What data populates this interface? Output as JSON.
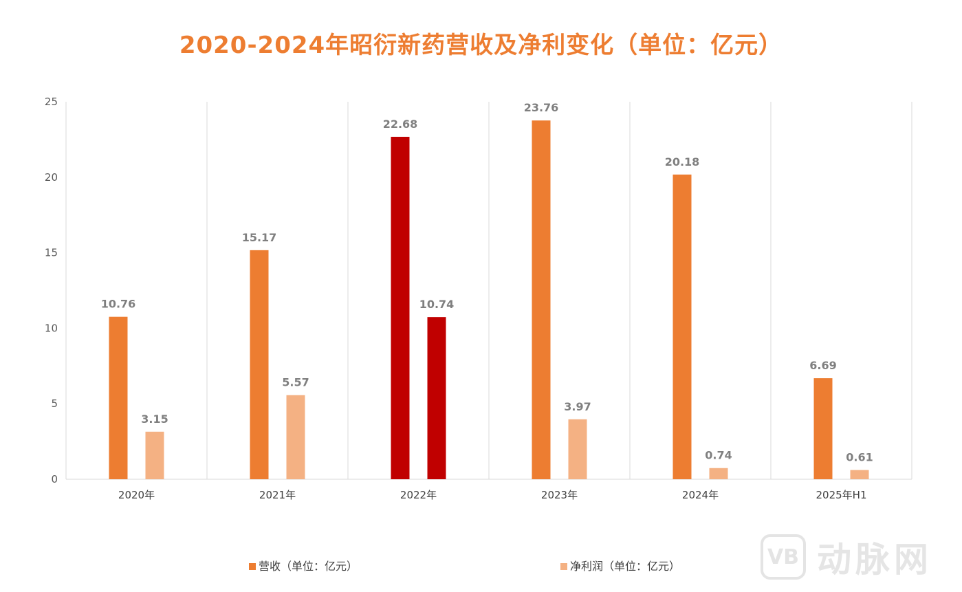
{
  "chart_data": {
    "type": "bar",
    "title": "2020-2024年昭衍新药营收及净利变化（单位：亿元）",
    "categories": [
      "2020年",
      "2021年",
      "2022年",
      "2023年",
      "2024年",
      "2025年H1"
    ],
    "series": [
      {
        "name": "营收（单位：亿元）",
        "values": [
          10.76,
          15.17,
          22.68,
          23.76,
          20.18,
          6.69
        ],
        "color": "#ed7d31"
      },
      {
        "name": "净利润（单位：亿元）",
        "values": [
          3.15,
          5.57,
          10.74,
          3.97,
          0.74,
          0.61
        ],
        "color": "#f4b183"
      }
    ],
    "highlight": {
      "category_index": 2,
      "color": "#c00000"
    },
    "ylim": [
      0,
      25
    ],
    "yticks": [
      0,
      5,
      10,
      15,
      20,
      25
    ],
    "xlabel": "",
    "ylabel": "",
    "grid": "vertical category separators",
    "legend_position": "bottom"
  },
  "watermark": {
    "logo_text": "VB",
    "brand": "动脉网"
  }
}
